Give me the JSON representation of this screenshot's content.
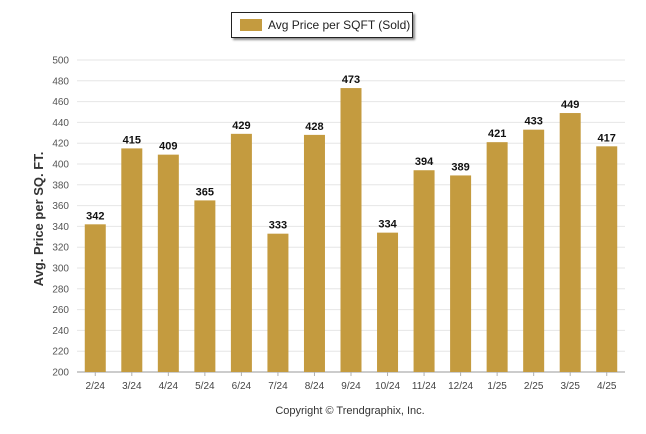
{
  "chart_data": {
    "type": "bar",
    "title": "",
    "xlabel": "",
    "ylabel": "Avg. Price per SQ. FT.",
    "ylim": [
      200,
      500
    ],
    "yticks": [
      200,
      220,
      240,
      260,
      280,
      300,
      320,
      340,
      360,
      380,
      400,
      420,
      440,
      460,
      480,
      500
    ],
    "grid": true,
    "legend_position": "top-center",
    "categories": [
      "2/24",
      "3/24",
      "4/24",
      "5/24",
      "6/24",
      "7/24",
      "8/24",
      "9/24",
      "10/24",
      "11/24",
      "12/24",
      "1/25",
      "2/25",
      "3/25",
      "4/25"
    ],
    "series": [
      {
        "name": "Avg Price per SQFT (Sold)",
        "color": "#c49b3f",
        "values": [
          342,
          415,
          409,
          365,
          429,
          333,
          428,
          473,
          334,
          394,
          389,
          421,
          433,
          449,
          417
        ]
      }
    ],
    "footer": "Copyright © Trendgraphix, Inc."
  }
}
